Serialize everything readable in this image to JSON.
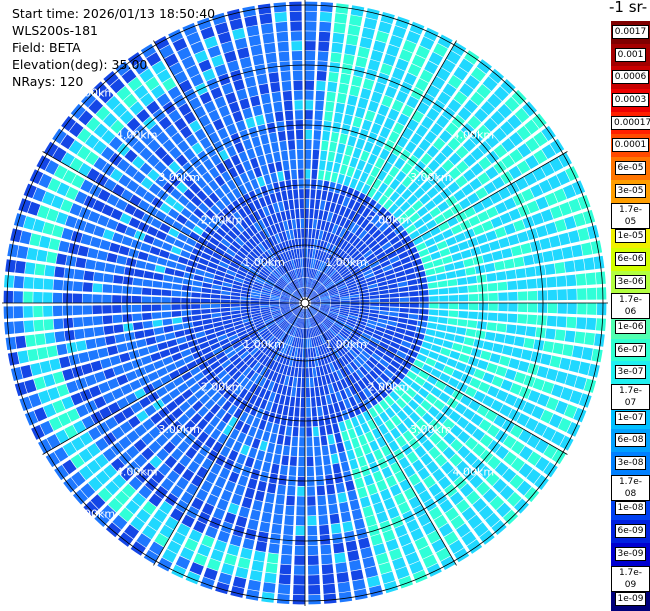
{
  "info": {
    "start_time": "Start time: 2026/01/13 18:50:40",
    "instrument": "WLS200s-181",
    "field": "Field: BETA",
    "elevation": "Elevation(deg): 35.00",
    "nrays": "NRays: 120"
  },
  "colorbar": {
    "title": "-1 sr-",
    "levels": [
      {
        "label": "0.0017",
        "color": "#7f0000"
      },
      {
        "label": "0.001",
        "color": "#a40000"
      },
      {
        "label": "0.0006",
        "color": "#c80000"
      },
      {
        "label": "0.0003",
        "color": "#ee0000"
      },
      {
        "label": "0.00017",
        "color": "#ff2000"
      },
      {
        "label": "0.0001",
        "color": "#ff4a00"
      },
      {
        "label": "6e-05",
        "color": "#ff7400"
      },
      {
        "label": "3e-05",
        "color": "#ff9e00"
      },
      {
        "label": "1.7e-05",
        "color": "#ffc800"
      },
      {
        "label": "1e-05",
        "color": "#f0f000"
      },
      {
        "label": "6e-06",
        "color": "#d2ff00"
      },
      {
        "label": "3e-06",
        "color": "#b2ff40"
      },
      {
        "label": "1.7e-06",
        "color": "#80ff80"
      },
      {
        "label": "1e-06",
        "color": "#50ffb0"
      },
      {
        "label": "6e-07",
        "color": "#30ffd0"
      },
      {
        "label": "3e-07",
        "color": "#20f0f0"
      },
      {
        "label": "1.7e-07",
        "color": "#10d8ff"
      },
      {
        "label": "1e-07",
        "color": "#00c0ff"
      },
      {
        "label": "6e-08",
        "color": "#00a0ff"
      },
      {
        "label": "3e-08",
        "color": "#0080ff"
      },
      {
        "label": "1.7e-08",
        "color": "#0060ff"
      },
      {
        "label": "1e-08",
        "color": "#0040f0"
      },
      {
        "label": "6e-09",
        "color": "#0020e0"
      },
      {
        "label": "3e-09",
        "color": "#0000d0"
      },
      {
        "label": "1.7e-09",
        "color": "#0000a0"
      },
      {
        "label": "1e-09",
        "color": "#00007a"
      }
    ]
  },
  "range_rings": {
    "labels": [
      "1.00km",
      "2.00km",
      "3.00km",
      "4.00km",
      "5.00km"
    ]
  },
  "palette": {
    "blue_dark": "#1446e6",
    "blue": "#1e78ff",
    "cyan": "#20d8ff",
    "aqua": "#30ffd8",
    "green": "#7cff80"
  }
}
